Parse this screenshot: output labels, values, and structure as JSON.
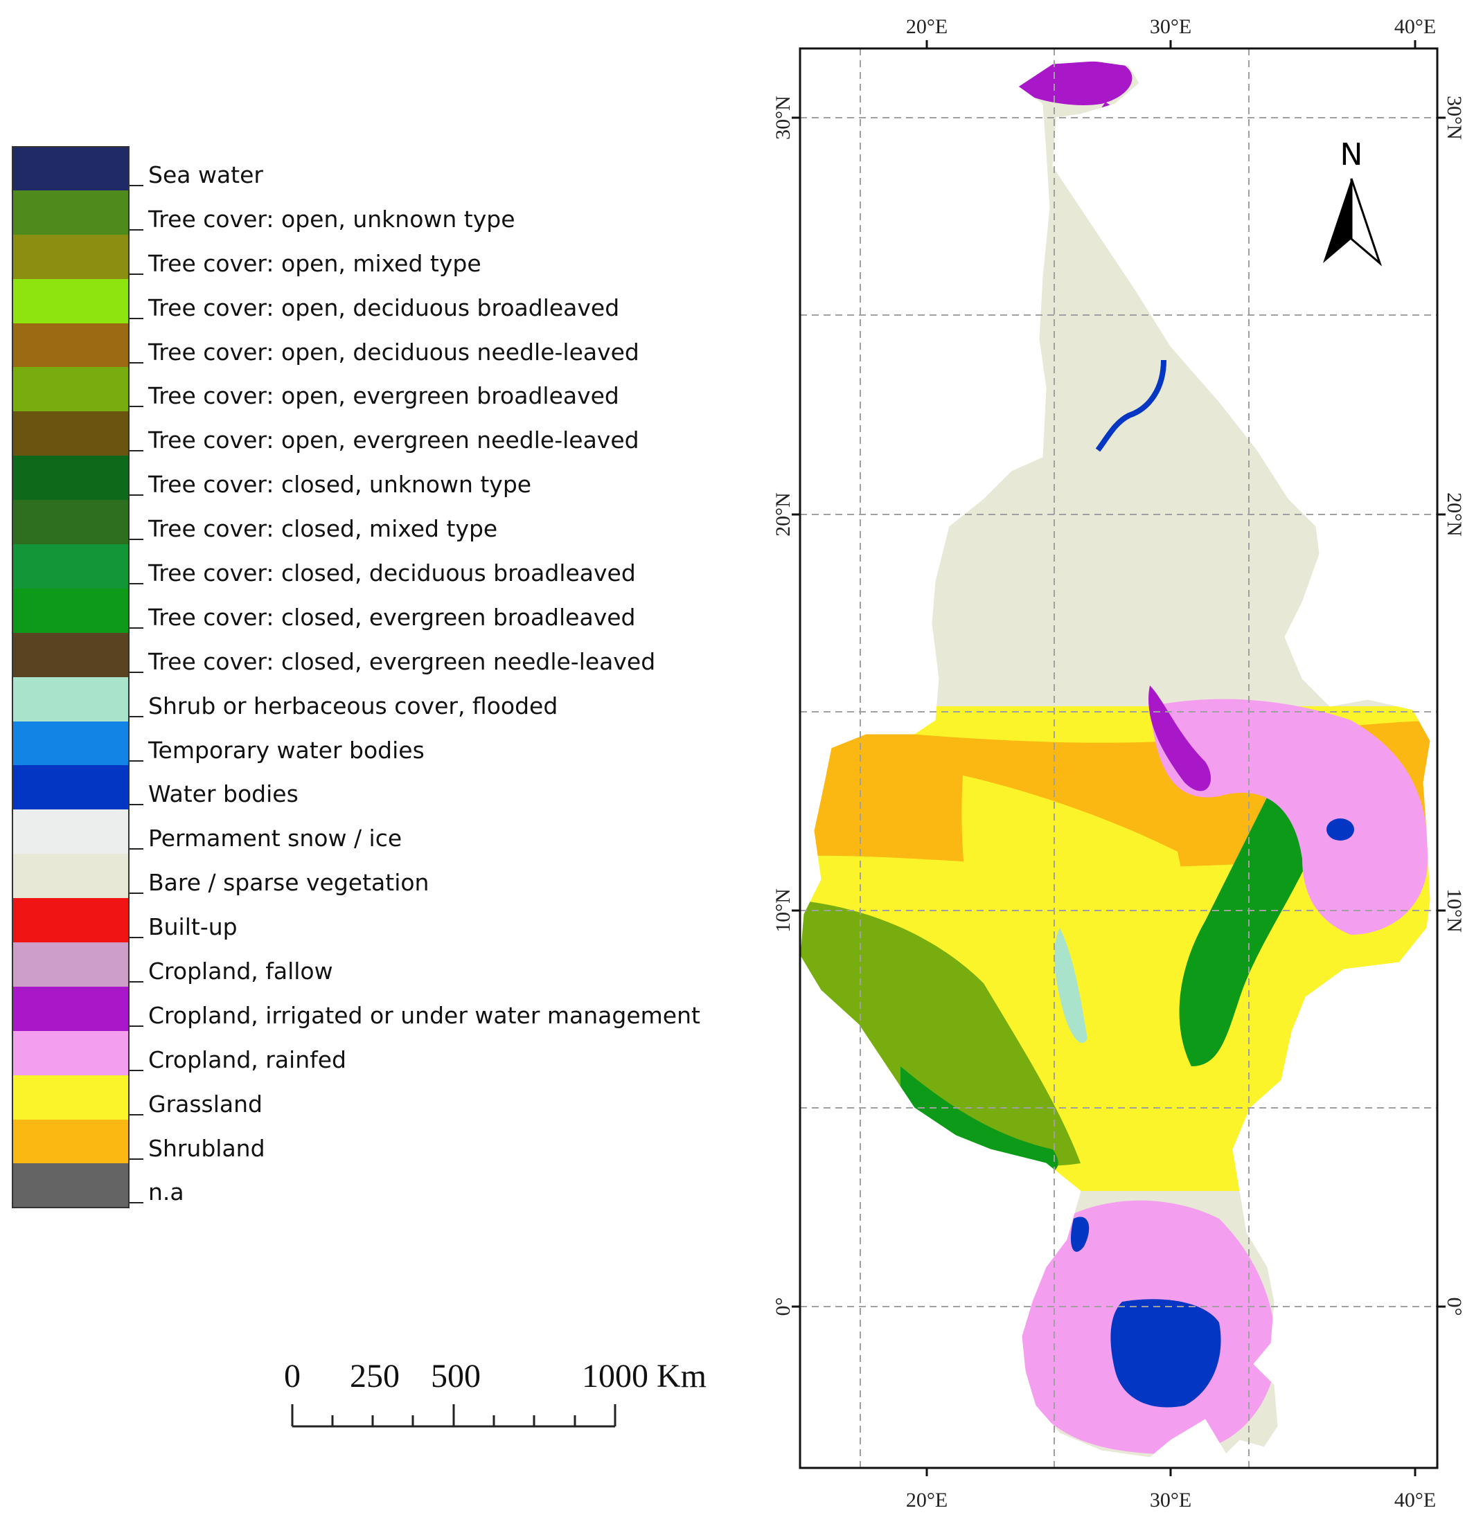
{
  "legend": [
    {
      "label": "Sea water",
      "color": "#1f2a66"
    },
    {
      "label": "Tree cover: open, unknown type",
      "color": "#4e8a1c"
    },
    {
      "label": "Tree cover: open, mixed type",
      "color": "#8c8e12"
    },
    {
      "label": "Tree cover: open, deciduous broadleaved",
      "color": "#8ee40e"
    },
    {
      "label": "Tree cover: open, deciduous needle-leaved",
      "color": "#9b6a12"
    },
    {
      "label": "Tree cover: open, evergreen broadleaved",
      "color": "#78ad10"
    },
    {
      "label": "Tree cover: open, evergreen needle-leaved",
      "color": "#6a5410"
    },
    {
      "label": "Tree cover: closed, unknown type",
      "color": "#0e6a1a"
    },
    {
      "label": "Tree cover: closed, mixed type",
      "color": "#2d6e1f"
    },
    {
      "label": "Tree cover: closed, deciduous broadleaved",
      "color": "#129638"
    },
    {
      "label": "Tree cover: closed, evergreen broadleaved",
      "color": "#0c9a18"
    },
    {
      "label": "Tree cover: closed, evergreen needle-leaved",
      "color": "#5a4320"
    },
    {
      "label": "Shrub or herbaceous cover, flooded",
      "color": "#a9e3cc"
    },
    {
      "label": "Temporary water bodies",
      "color": "#1284e6"
    },
    {
      "label": "Water bodies",
      "color": "#0436c4"
    },
    {
      "label": "Permament snow / ice",
      "color": "#eceeee"
    },
    {
      "label": "Bare / sparse vegetation",
      "color": "#e8e8d6"
    },
    {
      "label": "Built-up",
      "color": "#f01414"
    },
    {
      "label": "Cropland, fallow",
      "color": "#cc9ec8"
    },
    {
      "label": "Cropland, irrigated or under water management",
      "color": "#a818c8"
    },
    {
      "label": "Cropland, rainfed",
      "color": "#f49ef0"
    },
    {
      "label": "Grassland",
      "color": "#fcf42a"
    },
    {
      "label": "Shrubland",
      "color": "#fbb812"
    },
    {
      "label": "n.a",
      "color": "#646464"
    }
  ],
  "scale_bar": {
    "labels": [
      "0",
      "250",
      "500",
      "1000 Km"
    ]
  },
  "north_arrow": {
    "label": "N",
    "icon": "north-arrow-icon"
  },
  "axes": {
    "top_lon_labels": [
      "20°E",
      "30°E",
      "40°E"
    ],
    "bottom_lon_labels": [
      "20°E",
      "30°E",
      "40°E"
    ],
    "left_lat_labels": [
      "30°N",
      "20°N",
      "10°N",
      "0°"
    ],
    "right_lat_labels": [
      "30°N",
      "20°N",
      "10°N",
      "0°"
    ]
  },
  "colors": {
    "frame": "#111111",
    "grid": "#a0a0a0",
    "bare": "#e8e8d6",
    "grassland": "#fcf42a",
    "shrubland": "#fbb812",
    "rainfed": "#f49ef0",
    "irrigated": "#a818c8",
    "water": "#0436c4",
    "closed_forest": "#0c9a18",
    "open_forest": "#78ad10",
    "mixed": "#8c8e12",
    "flooded": "#a9e3cc"
  }
}
